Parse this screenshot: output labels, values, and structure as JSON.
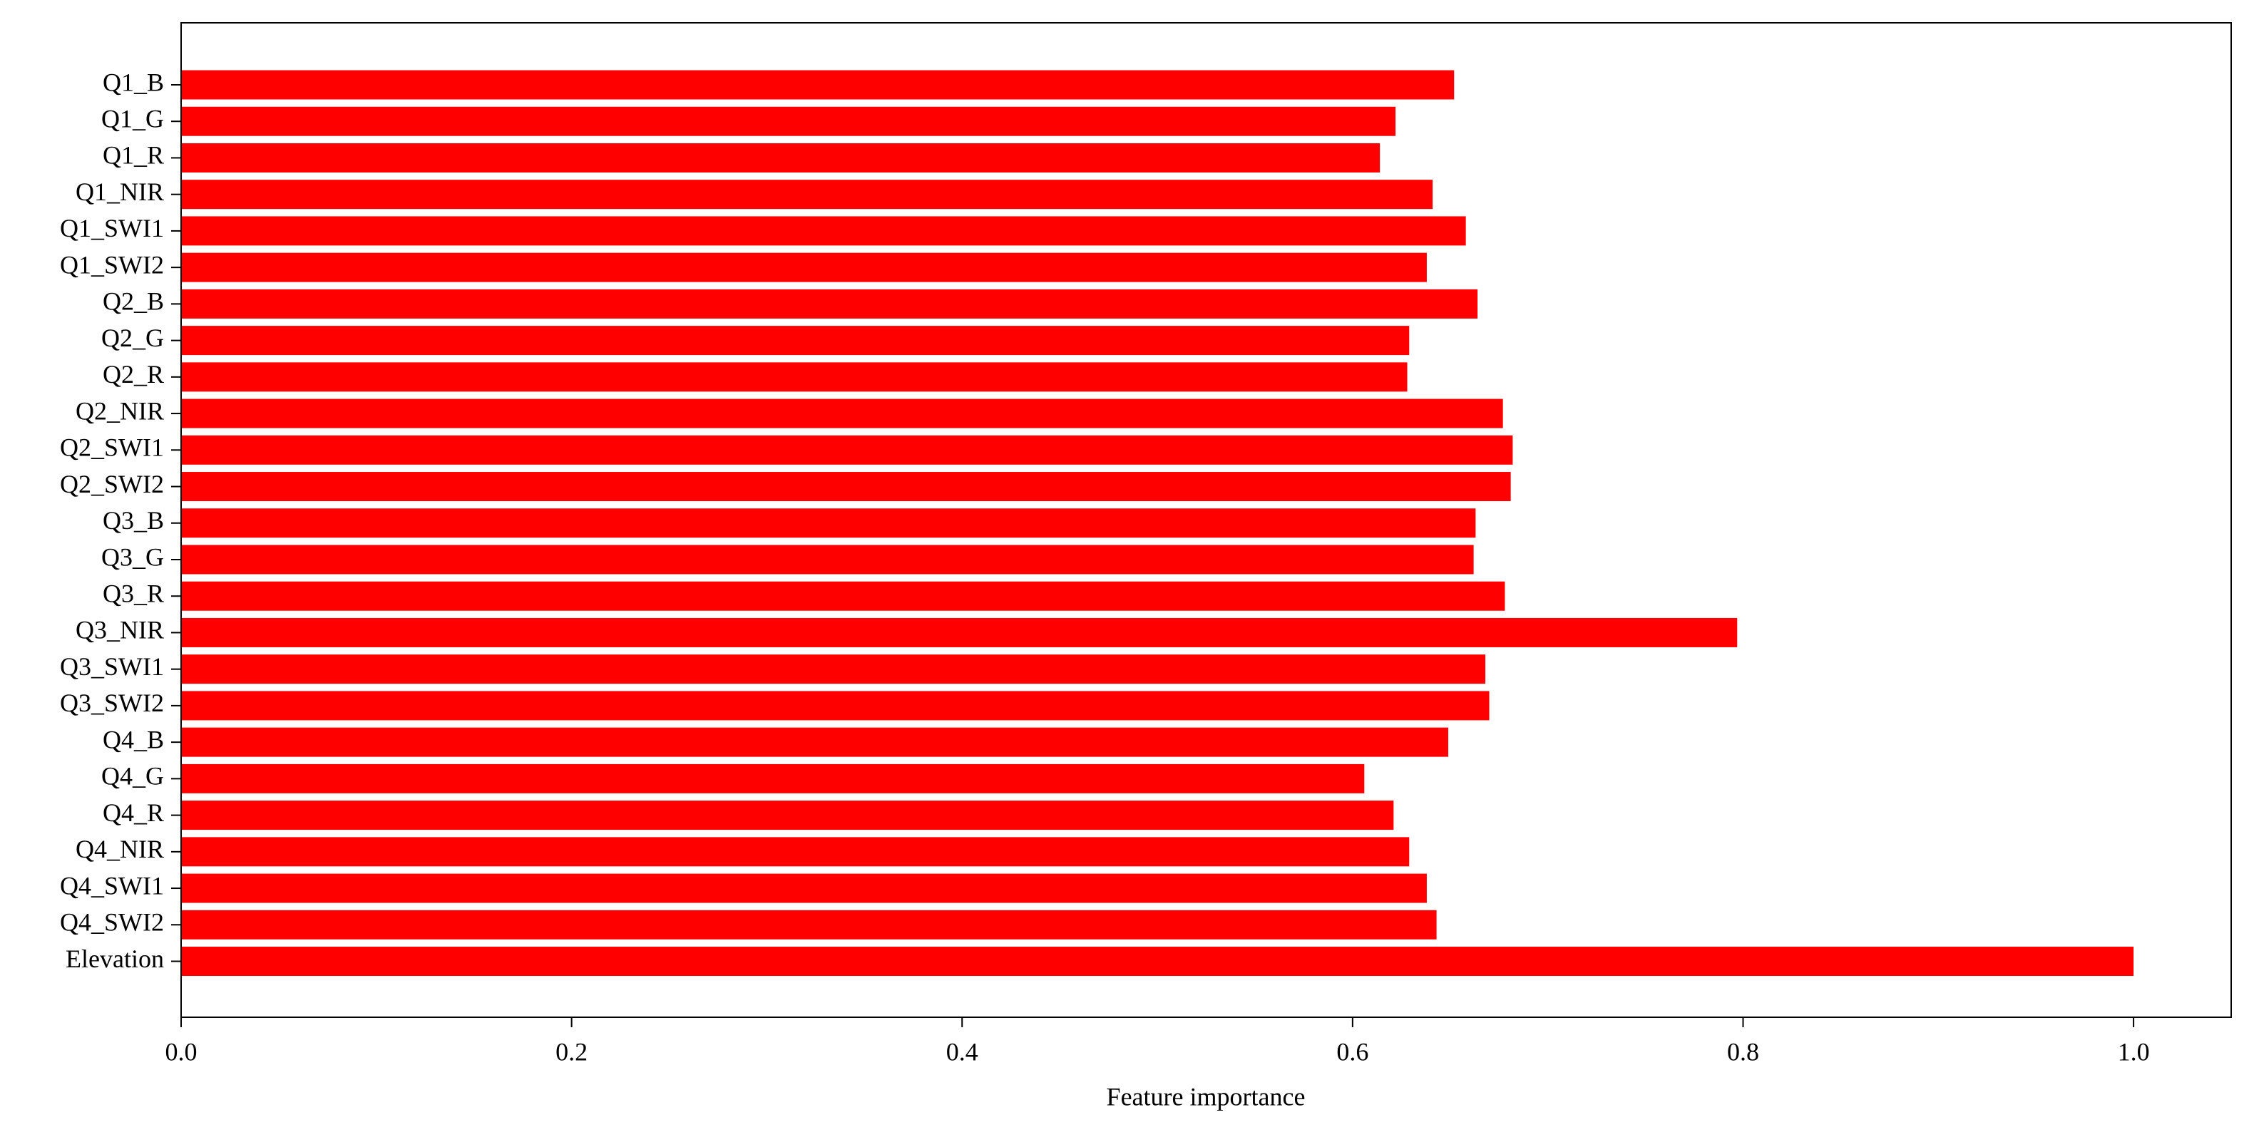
{
  "chart_data": {
    "type": "barh",
    "xlabel": "Feature importance",
    "categories": [
      "Q1_B",
      "Q1_G",
      "Q1_R",
      "Q1_NIR",
      "Q1_SWI1",
      "Q1_SWI2",
      "Q2_B",
      "Q2_G",
      "Q2_R",
      "Q2_NIR",
      "Q2_SWI1",
      "Q2_SWI2",
      "Q3_B",
      "Q3_G",
      "Q3_R",
      "Q3_NIR",
      "Q3_SWI1",
      "Q3_SWI2",
      "Q4_B",
      "Q4_G",
      "Q4_R",
      "Q4_NIR",
      "Q4_SWI1",
      "Q4_SWI2",
      "Elevation"
    ],
    "values": [
      0.652,
      0.622,
      0.614,
      0.641,
      0.658,
      0.638,
      0.664,
      0.629,
      0.628,
      0.677,
      0.682,
      0.681,
      0.663,
      0.662,
      0.678,
      0.797,
      0.668,
      0.67,
      0.649,
      0.606,
      0.621,
      0.629,
      0.638,
      0.643,
      1.0
    ],
    "color": "#ff0000",
    "xlim": [
      0,
      1.05
    ],
    "xticks": [
      {
        "value": 0,
        "label": "0.0"
      },
      0.2,
      0.4,
      0.6,
      0.8,
      {
        "value": 1,
        "label": "1.0"
      }
    ]
  }
}
